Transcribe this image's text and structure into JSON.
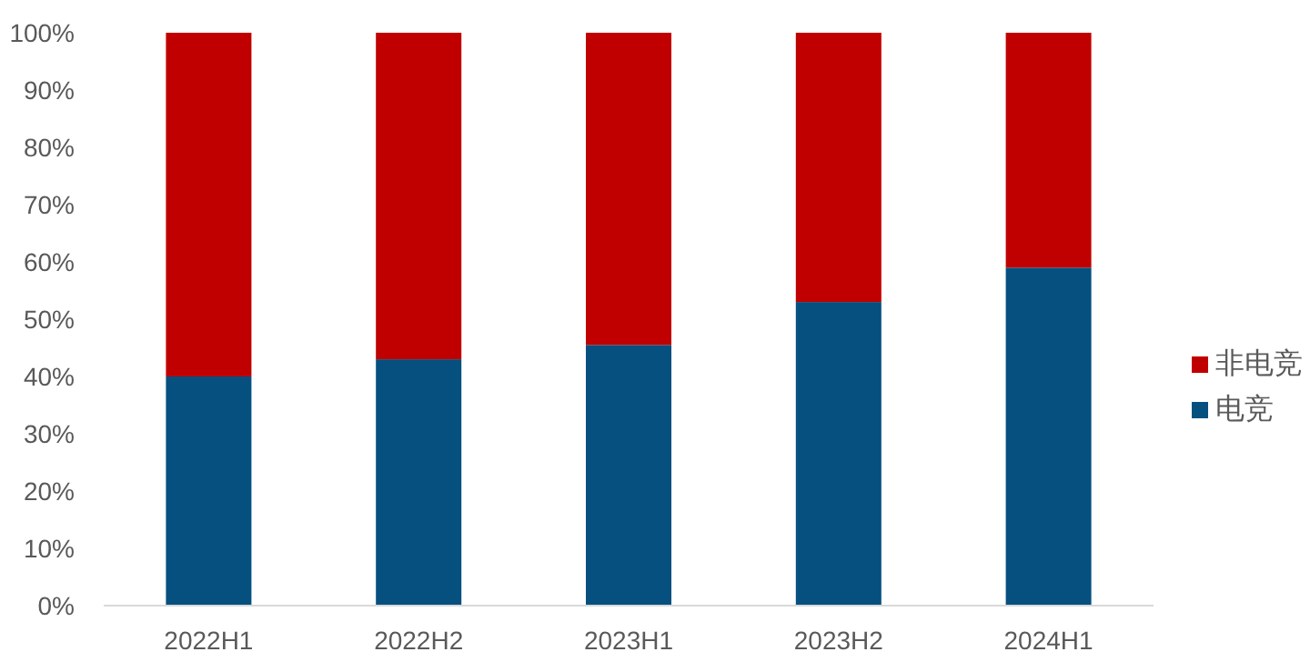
{
  "chart_data": {
    "type": "bar",
    "stacked": true,
    "categories": [
      "2022H1",
      "2022H2",
      "2023H1",
      "2023H2",
      "2024H1"
    ],
    "series": [
      {
        "name": "电竞",
        "color": "#05507f",
        "values": [
          40,
          43,
          45.5,
          53,
          59
        ]
      },
      {
        "name": "非电竞",
        "color": "#c00000",
        "values": [
          60,
          57,
          54.5,
          47,
          41
        ]
      }
    ],
    "ylim": [
      0,
      100
    ],
    "yticks": [
      {
        "value": 0,
        "label": "0%"
      },
      {
        "value": 10,
        "label": "10%"
      },
      {
        "value": 20,
        "label": "20%"
      },
      {
        "value": 30,
        "label": "30%"
      },
      {
        "value": 40,
        "label": "40%"
      },
      {
        "value": 50,
        "label": "50%"
      },
      {
        "value": 60,
        "label": "60%"
      },
      {
        "value": 70,
        "label": "70%"
      },
      {
        "value": 80,
        "label": "80%"
      },
      {
        "value": 90,
        "label": "90%"
      },
      {
        "value": 100,
        "label": "100%"
      }
    ],
    "legend": "right"
  }
}
